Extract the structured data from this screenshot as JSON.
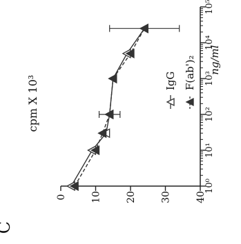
{
  "panel_label": "C",
  "chart_data": {
    "type": "line",
    "orientation": "rotated-90-ccw",
    "x_scale": "log",
    "xlim": [
      1,
      100000
    ],
    "ylim": [
      0,
      40
    ],
    "xlabel": "ng/ml",
    "ylabel": "cpm X 10³",
    "x_ticks": [
      {
        "value": 1,
        "label": "10⁰"
      },
      {
        "value": 10,
        "label": "10¹"
      },
      {
        "value": 100,
        "label": "10²"
      },
      {
        "value": 1000,
        "label": "10³"
      },
      {
        "value": 10000,
        "label": "10⁴"
      },
      {
        "value": 100000,
        "label": "10⁵"
      }
    ],
    "y_ticks": [
      {
        "value": 0,
        "label": "0"
      },
      {
        "value": 10,
        "label": "10"
      },
      {
        "value": 20,
        "label": "20"
      },
      {
        "value": 30,
        "label": "30"
      },
      {
        "value": 40,
        "label": "40"
      }
    ],
    "legend_position": "upper-left",
    "series": [
      {
        "name": "IgG",
        "marker": "triangle-open",
        "line_style": "solid",
        "x": [
          1,
          10,
          30,
          100,
          1000,
          5000,
          25000
        ],
        "y": [
          3,
          9,
          13,
          14,
          15,
          19,
          24
        ],
        "err": [
          0,
          0,
          0,
          0,
          0,
          0,
          0
        ]
      },
      {
        "name": "F(ab')₂",
        "marker": "triangle-filled",
        "line_style": "dashed",
        "x": [
          1,
          10,
          30,
          100,
          1000,
          5000,
          25000
        ],
        "y": [
          4,
          10,
          12,
          14,
          15,
          20,
          24
        ],
        "err": [
          0,
          0,
          0,
          3,
          0,
          0,
          10
        ]
      }
    ]
  }
}
